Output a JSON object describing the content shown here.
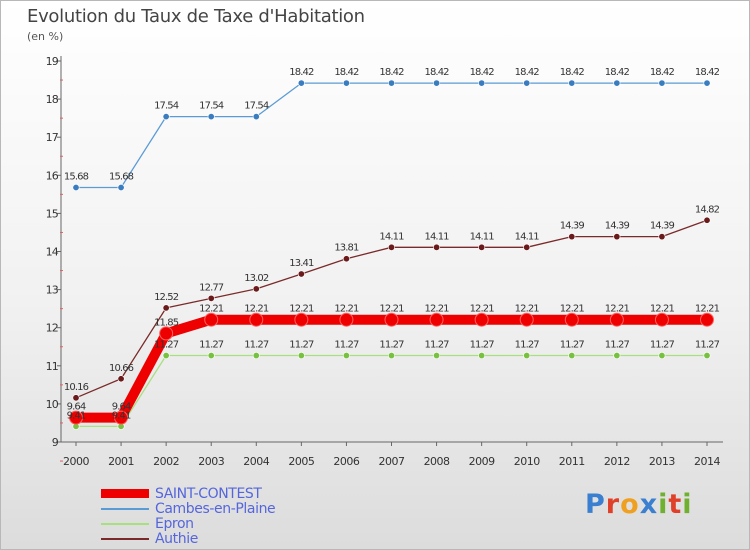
{
  "header": {
    "title": "Evolution du Taux de Taxe d'Habitation",
    "unit": "(en %)"
  },
  "logo": {
    "letters": [
      "P",
      "r",
      "o",
      "x",
      "i",
      "t",
      "i"
    ],
    "colors": [
      "#3a7fd0",
      "#e0402a",
      "#f0a020",
      "#3a7fd0",
      "#70b030",
      "#e0402a",
      "#70b030"
    ]
  },
  "chart_data": {
    "type": "line",
    "title": "Evolution du Taux de Taxe d'Habitation",
    "ylabel": "(en %)",
    "xlabel": "",
    "x": [
      "2000",
      "2001",
      "2002",
      "2003",
      "2004",
      "2005",
      "2006",
      "2007",
      "2008",
      "2009",
      "2010",
      "2011",
      "2012",
      "2013",
      "2014"
    ],
    "ylim": [
      9,
      19
    ],
    "yticks": [
      "9",
      "10",
      "11",
      "12",
      "13",
      "14",
      "15",
      "16",
      "17",
      "18",
      "19"
    ],
    "grid": false,
    "legend_position": "bottom-left",
    "series": [
      {
        "name": "SAINT-CONTEST",
        "color": "#ee0000",
        "bold": true,
        "values": [
          9.64,
          9.64,
          11.85,
          12.21,
          12.21,
          12.21,
          12.21,
          12.21,
          12.21,
          12.21,
          12.21,
          12.21,
          12.21,
          12.21,
          12.21
        ],
        "labels": [
          "9.64",
          "9.64",
          "11.85",
          "12.21",
          "12.21",
          "12.21",
          "12.21",
          "12.21",
          "12.21",
          "12.21",
          "12.21",
          "12.21",
          "12.21",
          "12.21",
          "12.21"
        ]
      },
      {
        "name": "Cambes-en-Plaine",
        "color": "#5b9bd5",
        "marker": "#3a7cc0",
        "values": [
          15.68,
          15.68,
          17.54,
          17.54,
          17.54,
          18.42,
          18.42,
          18.42,
          18.42,
          18.42,
          18.42,
          18.42,
          18.42,
          18.42,
          18.42
        ],
        "labels": [
          "15.68",
          "15.68",
          "17.54",
          "17.54",
          "17.54",
          "18.42",
          "18.42",
          "18.42",
          "18.42",
          "18.42",
          "18.42",
          "18.42",
          "18.42",
          "18.42",
          "18.42"
        ]
      },
      {
        "name": "Epron",
        "color": "#a8e080",
        "marker": "#78c040",
        "values": [
          9.41,
          9.41,
          11.27,
          11.27,
          11.27,
          11.27,
          11.27,
          11.27,
          11.27,
          11.27,
          11.27,
          11.27,
          11.27,
          11.27,
          11.27
        ],
        "labels": [
          "9.41",
          "9.41",
          "11.27",
          "11.27",
          "11.27",
          "11.27",
          "11.27",
          "11.27",
          "11.27",
          "11.27",
          "11.27",
          "11.27",
          "11.27",
          "11.27",
          "11.27"
        ]
      },
      {
        "name": "Authie",
        "color": "#7a2a2a",
        "marker": "#6a1a1a",
        "values": [
          10.16,
          10.66,
          12.52,
          12.77,
          13.02,
          13.41,
          13.81,
          14.11,
          14.11,
          14.11,
          14.11,
          14.39,
          14.39,
          14.39,
          14.82
        ],
        "labels": [
          "10.16",
          "10.66",
          "12.52",
          "12.77",
          "13.02",
          "13.41",
          "13.81",
          "14.11",
          "14.11",
          "14.11",
          "14.11",
          "14.39",
          "14.39",
          "14.39",
          "14.82"
        ]
      }
    ]
  }
}
